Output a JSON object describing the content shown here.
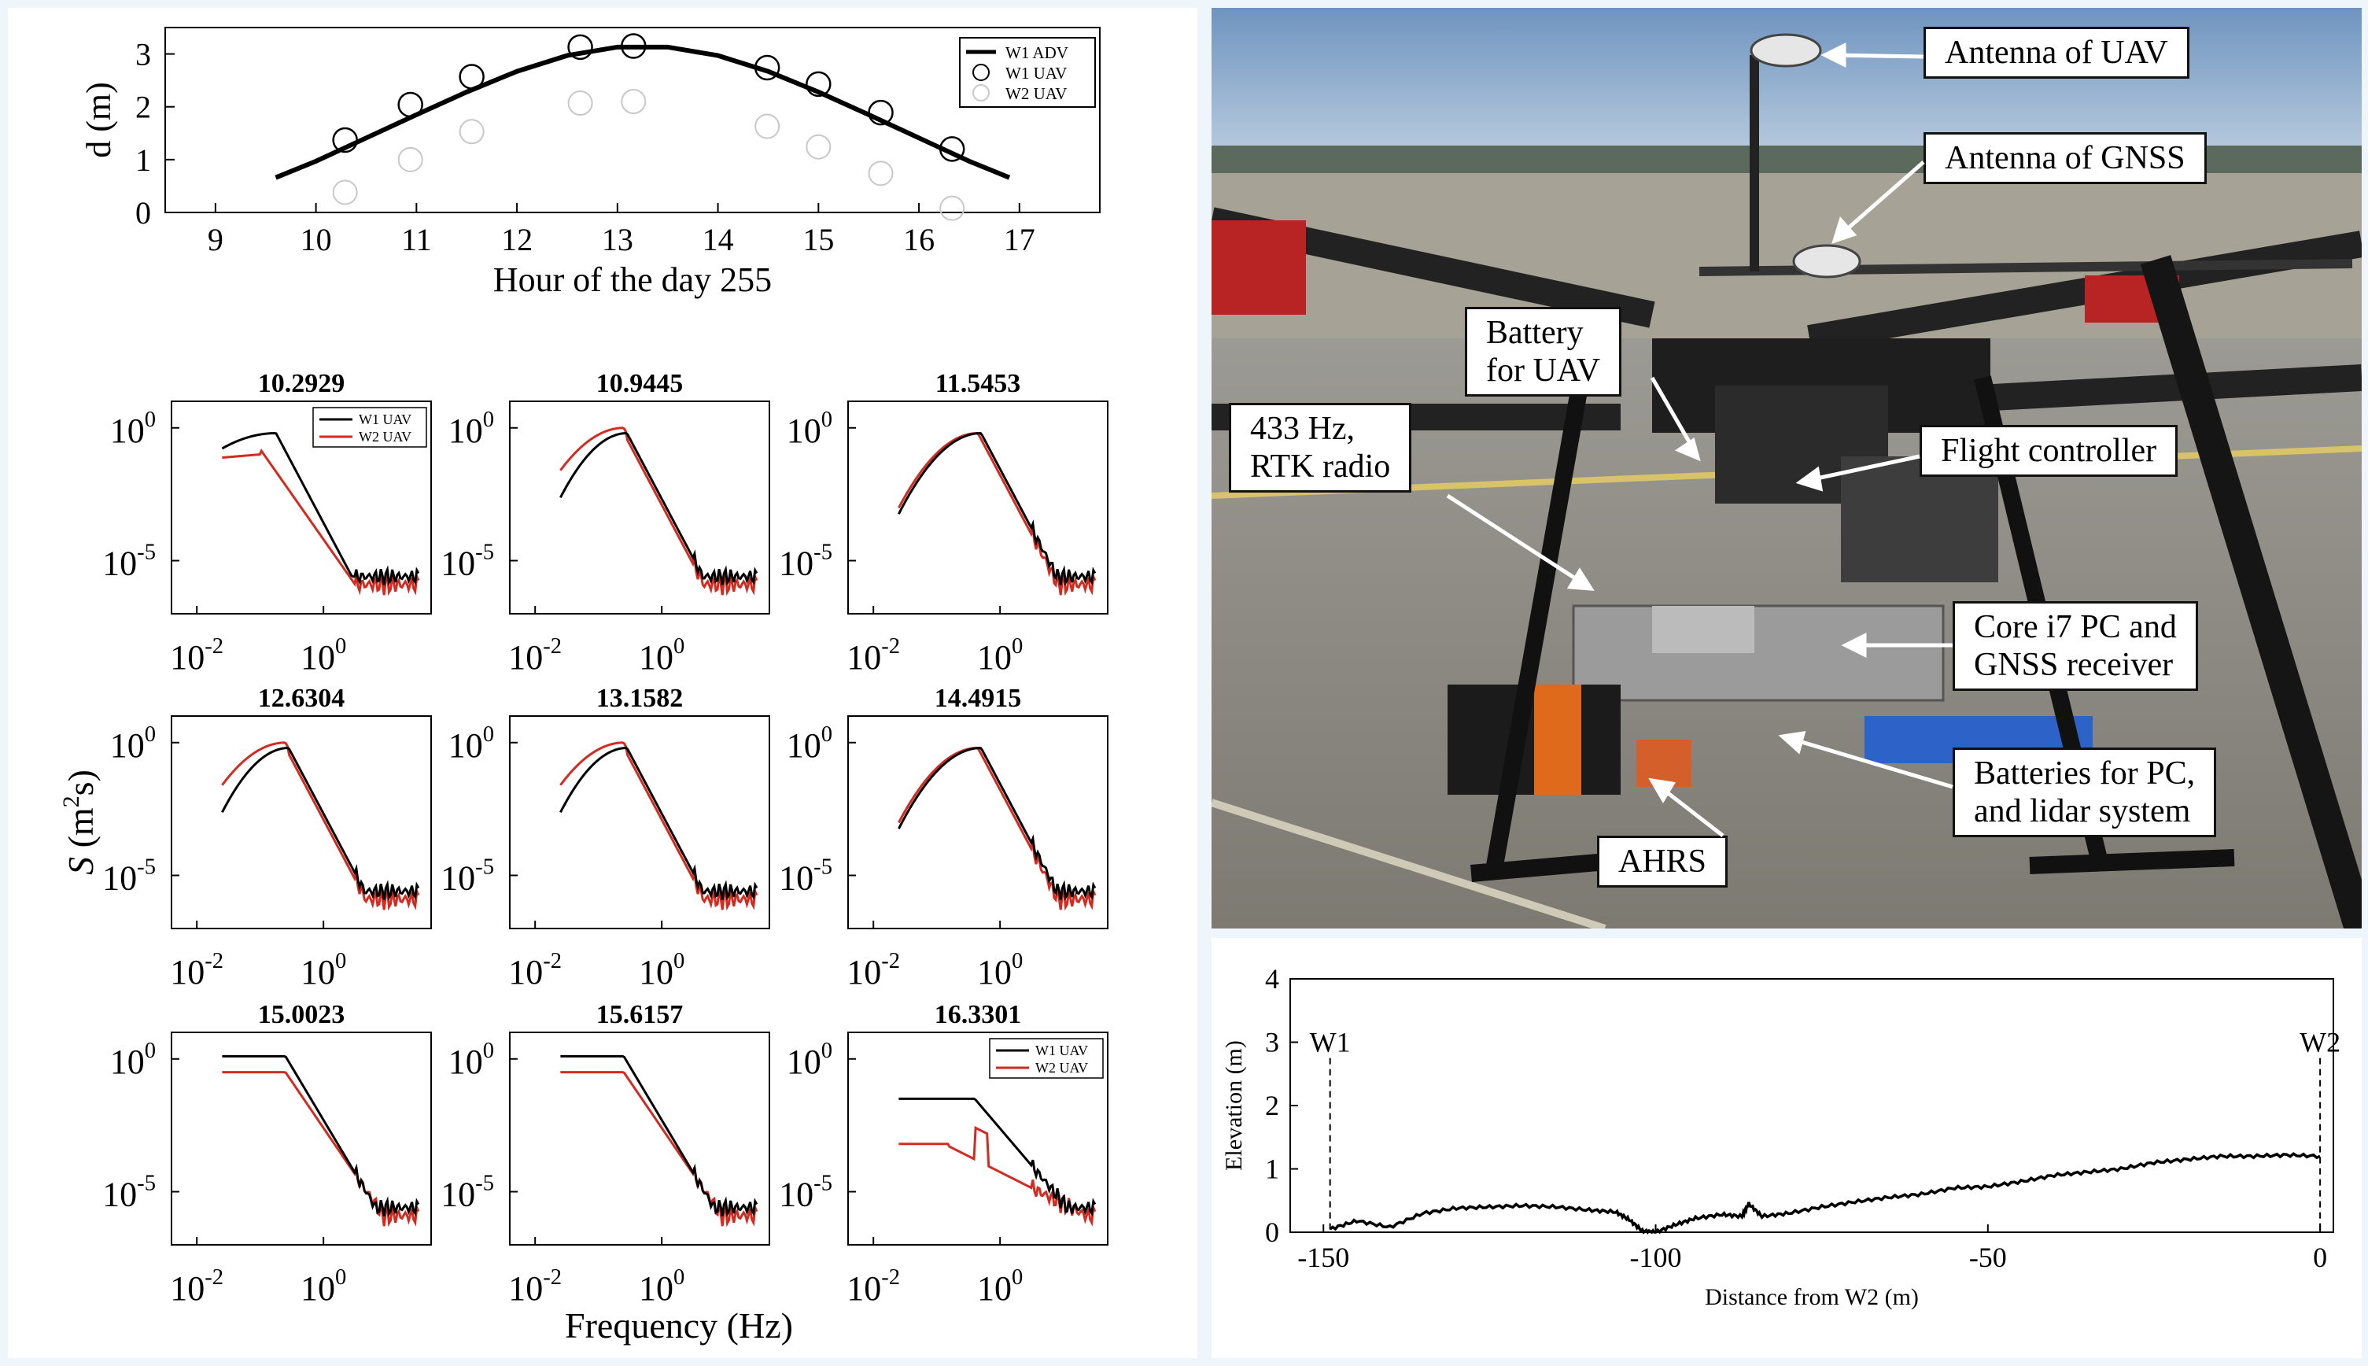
{
  "colors": {
    "w1": "#000000",
    "w2": "#d42a1f",
    "w2_faint": "#c8c8c8",
    "frame": "#eef6fb"
  },
  "chart_data": [
    {
      "type": "line",
      "title": "",
      "xlabel": "Hour of the day 255",
      "ylabel": "d (m)",
      "xlim": [
        8.5,
        17.8
      ],
      "ylim": [
        0,
        3.5
      ],
      "xticks": [
        "9",
        "10",
        "11",
        "12",
        "13",
        "14",
        "15",
        "16",
        "17"
      ],
      "yticks": [
        "0",
        "1",
        "2",
        "3"
      ],
      "legend": {
        "position": "top-right",
        "entries": [
          "W1 ADV",
          "W1 UAV",
          "W2 UAV"
        ]
      },
      "series": [
        {
          "name": "W1 ADV",
          "style": "line",
          "x": [
            9.6,
            10.0,
            10.5,
            11.0,
            11.5,
            12.0,
            12.5,
            13.0,
            13.5,
            14.0,
            14.5,
            15.0,
            15.5,
            16.0,
            16.5,
            16.9
          ],
          "y": [
            0.66,
            0.97,
            1.41,
            1.85,
            2.28,
            2.67,
            2.97,
            3.13,
            3.13,
            2.97,
            2.67,
            2.28,
            1.85,
            1.41,
            0.97,
            0.66
          ]
        },
        {
          "name": "W1 UAV",
          "style": "open-circle",
          "x": [
            10.29,
            10.94,
            11.55,
            12.63,
            13.16,
            14.49,
            15.0,
            15.62,
            16.33
          ],
          "y": [
            1.37,
            2.04,
            2.57,
            3.13,
            3.15,
            2.74,
            2.43,
            1.89,
            1.2
          ]
        },
        {
          "name": "W2 UAV",
          "style": "open-circle-faint",
          "x": [
            10.29,
            10.94,
            11.55,
            12.63,
            13.16,
            14.49,
            15.0,
            15.62,
            16.33
          ],
          "y": [
            0.38,
            1.0,
            1.53,
            2.07,
            2.1,
            1.63,
            1.24,
            0.74,
            0.08
          ]
        }
      ]
    },
    {
      "type": "line",
      "log_scale": {
        "x": true,
        "y": true
      },
      "xlabel": "Frequency (Hz)",
      "ylabel": "S (m2s)",
      "xticks": [
        "10-2",
        "100"
      ],
      "yticks": [
        "100",
        "10-5"
      ],
      "legend": {
        "position": "top-right",
        "entries": [
          "W1 UAV",
          "W2 UAV"
        ]
      },
      "panels": [
        {
          "title": "10.2929",
          "shape": "a",
          "legend": true
        },
        {
          "title": "10.9445",
          "shape": "b"
        },
        {
          "title": "11.5453",
          "shape": "c"
        },
        {
          "title": "12.6304",
          "shape": "b"
        },
        {
          "title": "13.1582",
          "shape": "b"
        },
        {
          "title": "14.4915",
          "shape": "c"
        },
        {
          "title": "15.0023",
          "shape": "d"
        },
        {
          "title": "15.6157",
          "shape": "d"
        },
        {
          "title": "16.3301",
          "shape": "e",
          "legend": true
        }
      ]
    },
    {
      "type": "line",
      "xlabel": "Distance from W2 (m)",
      "ylabel": "Elevation (m)",
      "xlim": [
        -155,
        2
      ],
      "ylim": [
        0,
        4
      ],
      "xticks": [
        "-150",
        "-100",
        "-50",
        "0"
      ],
      "yticks": [
        "0",
        "1",
        "2",
        "3",
        "4"
      ],
      "markers": [
        {
          "name": "W1",
          "x": -149
        },
        {
          "name": "W2",
          "x": 0
        }
      ],
      "series": [
        {
          "name": "",
          "x": [
            -149,
            -145,
            -140,
            -135,
            -130,
            -125,
            -120,
            -115,
            -110,
            -106,
            -104,
            -102,
            -100,
            -97,
            -94,
            -90,
            -87,
            -86,
            -84,
            -80,
            -75,
            -70,
            -65,
            -60,
            -55,
            -50,
            -45,
            -40,
            -35,
            -30,
            -25,
            -20,
            -15,
            -10,
            -5,
            0
          ],
          "y": [
            0.05,
            0.18,
            0.08,
            0.3,
            0.38,
            0.4,
            0.42,
            0.4,
            0.35,
            0.32,
            0.2,
            0.02,
            0.0,
            0.12,
            0.22,
            0.28,
            0.25,
            0.45,
            0.25,
            0.3,
            0.4,
            0.48,
            0.55,
            0.6,
            0.7,
            0.72,
            0.8,
            0.9,
            0.95,
            1.0,
            1.1,
            1.15,
            1.2,
            1.2,
            1.22,
            1.2
          ]
        }
      ]
    }
  ],
  "photo": {
    "labels": {
      "antenna_uav": "Antenna of UAV",
      "antenna_gnss": "Antenna of GNSS",
      "battery_uav_1": "Battery",
      "battery_uav_2": "for UAV",
      "radio_1": "433 Hz,",
      "radio_2": "RTK radio",
      "flight_controller": "Flight controller",
      "pc_1": "Core i7 PC and",
      "pc_2": "GNSS receiver",
      "batteries_1": "Batteries for PC,",
      "batteries_2": "and lidar system",
      "ahrs": "AHRS"
    }
  }
}
